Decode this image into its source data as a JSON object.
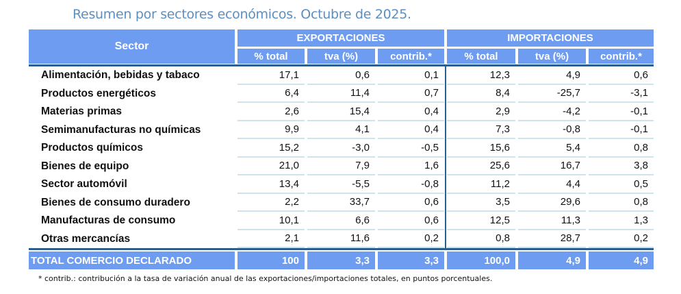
{
  "title": "Resumen por sectores económicos. Octubre de 2025.",
  "header": {
    "sector": "Sector",
    "exports": "EXPORTACIONES",
    "imports": "IMPORTACIONES",
    "subcols": [
      "% total",
      "tva (%)",
      "contrib.*",
      "% total",
      "tva (%)",
      "contrib.*"
    ]
  },
  "rows": [
    {
      "label": "Alimentación, bebidas y tabaco",
      "values": [
        "17,1",
        "0,6",
        "0,1",
        "12,3",
        "4,9",
        "0,6"
      ]
    },
    {
      "label": "Productos energéticos",
      "values": [
        "6,4",
        "11,4",
        "0,7",
        "8,4",
        "-25,7",
        "-3,1"
      ]
    },
    {
      "label": "Materias primas",
      "values": [
        "2,6",
        "15,4",
        "0,4",
        "2,9",
        "-4,2",
        "-0,1"
      ]
    },
    {
      "label": "Semimanufacturas no químicas",
      "values": [
        "9,9",
        "4,1",
        "0,4",
        "7,3",
        "-0,8",
        "-0,1"
      ]
    },
    {
      "label": "Productos químicos",
      "values": [
        "15,2",
        "-3,0",
        "-0,5",
        "15,6",
        "5,4",
        "0,8"
      ]
    },
    {
      "label": "Bienes de equipo",
      "values": [
        "21,0",
        "7,9",
        "1,6",
        "25,6",
        "16,7",
        "3,8"
      ]
    },
    {
      "label": "Sector automóvil",
      "values": [
        "13,4",
        "-5,5",
        "-0,8",
        "11,2",
        "4,4",
        "0,5"
      ]
    },
    {
      "label": "Bienes de consumo duradero",
      "values": [
        "2,2",
        "33,7",
        "0,6",
        "3,5",
        "29,6",
        "0,8"
      ]
    },
    {
      "label": "Manufacturas de consumo",
      "values": [
        "10,1",
        "6,6",
        "0,6",
        "12,5",
        "11,3",
        "1,3"
      ]
    },
    {
      "label": "Otras mercancías",
      "values": [
        "2,1",
        "11,6",
        "0,2",
        "0,8",
        "28,7",
        "0,2"
      ]
    }
  ],
  "total": {
    "label": "TOTAL COMERCIO DECLARADO",
    "values": [
      "100",
      "3,3",
      "3,3",
      "100,0",
      "4,9",
      "4,9"
    ]
  },
  "footnote": "* contrib.: contribución a la tasa de variación anual de las exportaciones/importaciones totales, en puntos porcentuales."
}
